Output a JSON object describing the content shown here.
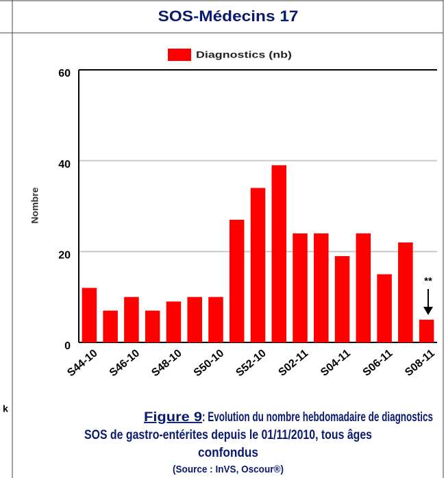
{
  "header": {
    "title": "SOS-Médecins 17"
  },
  "left_column_fragment": "k",
  "chart_data": {
    "type": "bar",
    "legend": "Diagnostics (nb)",
    "y_label": "Nombre",
    "annotation": "**",
    "categories": [
      "S44-10",
      null,
      "S46-10",
      null,
      "S48-10",
      null,
      "S50-10",
      null,
      "S52-10",
      null,
      "S02-11",
      null,
      "S04-11",
      null,
      "S06-11",
      null,
      "S08-11"
    ],
    "values": [
      12,
      7,
      10,
      7,
      9,
      10,
      10,
      27,
      34,
      39,
      24,
      24,
      19,
      24,
      15,
      22,
      5
    ],
    "color": "#ff0000",
    "ylim": [
      0,
      60
    ],
    "yticks": [
      0,
      20,
      40,
      60
    ],
    "grid": true
  },
  "caption": {
    "label": "Figure 9",
    "lines": [
      " : Evolution du nombre hebdomadaire de diagnostics",
      "SOS de gastro-entérites depuis le 01/11/2010, tous âges",
      "confondus"
    ],
    "source": "(Source : InVS, Oscour®)"
  }
}
